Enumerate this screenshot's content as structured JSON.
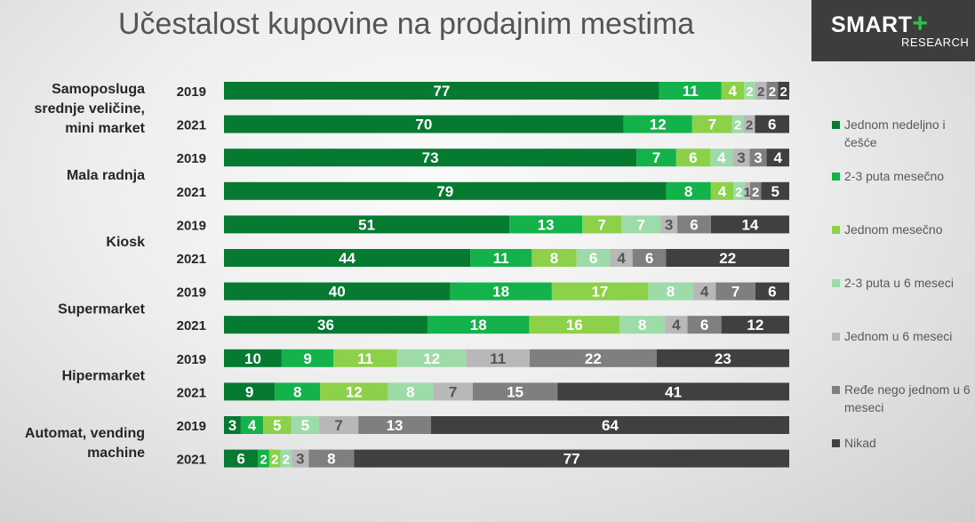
{
  "title": "Učestalost kupovine na prodajnim mestima",
  "logo": {
    "brand": "SMART",
    "plus": "+",
    "sub": "RESEARCH"
  },
  "legend": [
    {
      "label": "Jednom nedeljno i češće",
      "color": "#057a30",
      "icon": "square-icon"
    },
    {
      "label": "2-3 puta mesečno",
      "color": "#14b24a",
      "icon": "square-icon"
    },
    {
      "label": "Jednom mesečno",
      "color": "#8cd149",
      "icon": "square-icon"
    },
    {
      "label": "2-3 puta u 6 meseci",
      "color": "#9ddba8",
      "icon": "square-icon"
    },
    {
      "label": "Jednom u 6 meseci",
      "color": "#b8b8b8",
      "icon": "square-icon"
    },
    {
      "label": "Ređe nego jednom u 6 meseci",
      "color": "#7f7f7f",
      "icon": "square-icon"
    },
    {
      "label": "Nikad",
      "color": "#404040",
      "icon": "square-icon"
    }
  ],
  "chart_data": {
    "type": "bar",
    "orientation": "horizontal",
    "stacked": "100%",
    "title": "Učestalost kupovine na prodajnim mestima",
    "series_names": [
      "Jednom nedeljno i češće",
      "2-3 puta mesečno",
      "Jednom mesečno",
      "2-3 puta u 6 meseci",
      "Jednom u 6 meseci",
      "Ređe nego jednom u 6 meseci",
      "Nikad"
    ],
    "groups": [
      {
        "label": [
          "Samoposluga",
          "srednje veličine,",
          "mini market"
        ],
        "rows": [
          {
            "year": "2019",
            "values": [
              77,
              11,
              4,
              2,
              2,
              2,
              2
            ]
          },
          {
            "year": "2021",
            "values": [
              70,
              12,
              7,
              2,
              2,
              null,
              6
            ]
          }
        ]
      },
      {
        "label": [
          "Mala radnja"
        ],
        "rows": [
          {
            "year": "2019",
            "values": [
              73,
              7,
              6,
              4,
              3,
              3,
              4
            ]
          },
          {
            "year": "2021",
            "values": [
              79,
              8,
              4,
              2,
              1,
              2,
              5
            ]
          }
        ]
      },
      {
        "label": [
          "Kiosk"
        ],
        "rows": [
          {
            "year": "2019",
            "values": [
              51,
              13,
              7,
              7,
              3,
              6,
              14
            ]
          },
          {
            "year": "2021",
            "values": [
              44,
              11,
              8,
              6,
              4,
              6,
              22
            ]
          }
        ]
      },
      {
        "label": [
          "Supermarket"
        ],
        "rows": [
          {
            "year": "2019",
            "values": [
              40,
              18,
              17,
              8,
              4,
              7,
              6
            ]
          },
          {
            "year": "2021",
            "values": [
              36,
              18,
              16,
              8,
              4,
              6,
              12
            ]
          }
        ]
      },
      {
        "label": [
          "Hipermarket"
        ],
        "rows": [
          {
            "year": "2019",
            "values": [
              10,
              9,
              11,
              12,
              11,
              22,
              23
            ]
          },
          {
            "year": "2021",
            "values": [
              9,
              8,
              12,
              8,
              7,
              15,
              41
            ]
          }
        ]
      },
      {
        "label": [
          "Automat, vending",
          "machine"
        ],
        "rows": [
          {
            "year": "2019",
            "values": [
              3,
              4,
              5,
              5,
              7,
              13,
              64
            ]
          },
          {
            "year": "2021",
            "values": [
              6,
              2,
              2,
              2,
              3,
              8,
              77
            ]
          }
        ]
      }
    ],
    "xlim": [
      0,
      100
    ]
  }
}
